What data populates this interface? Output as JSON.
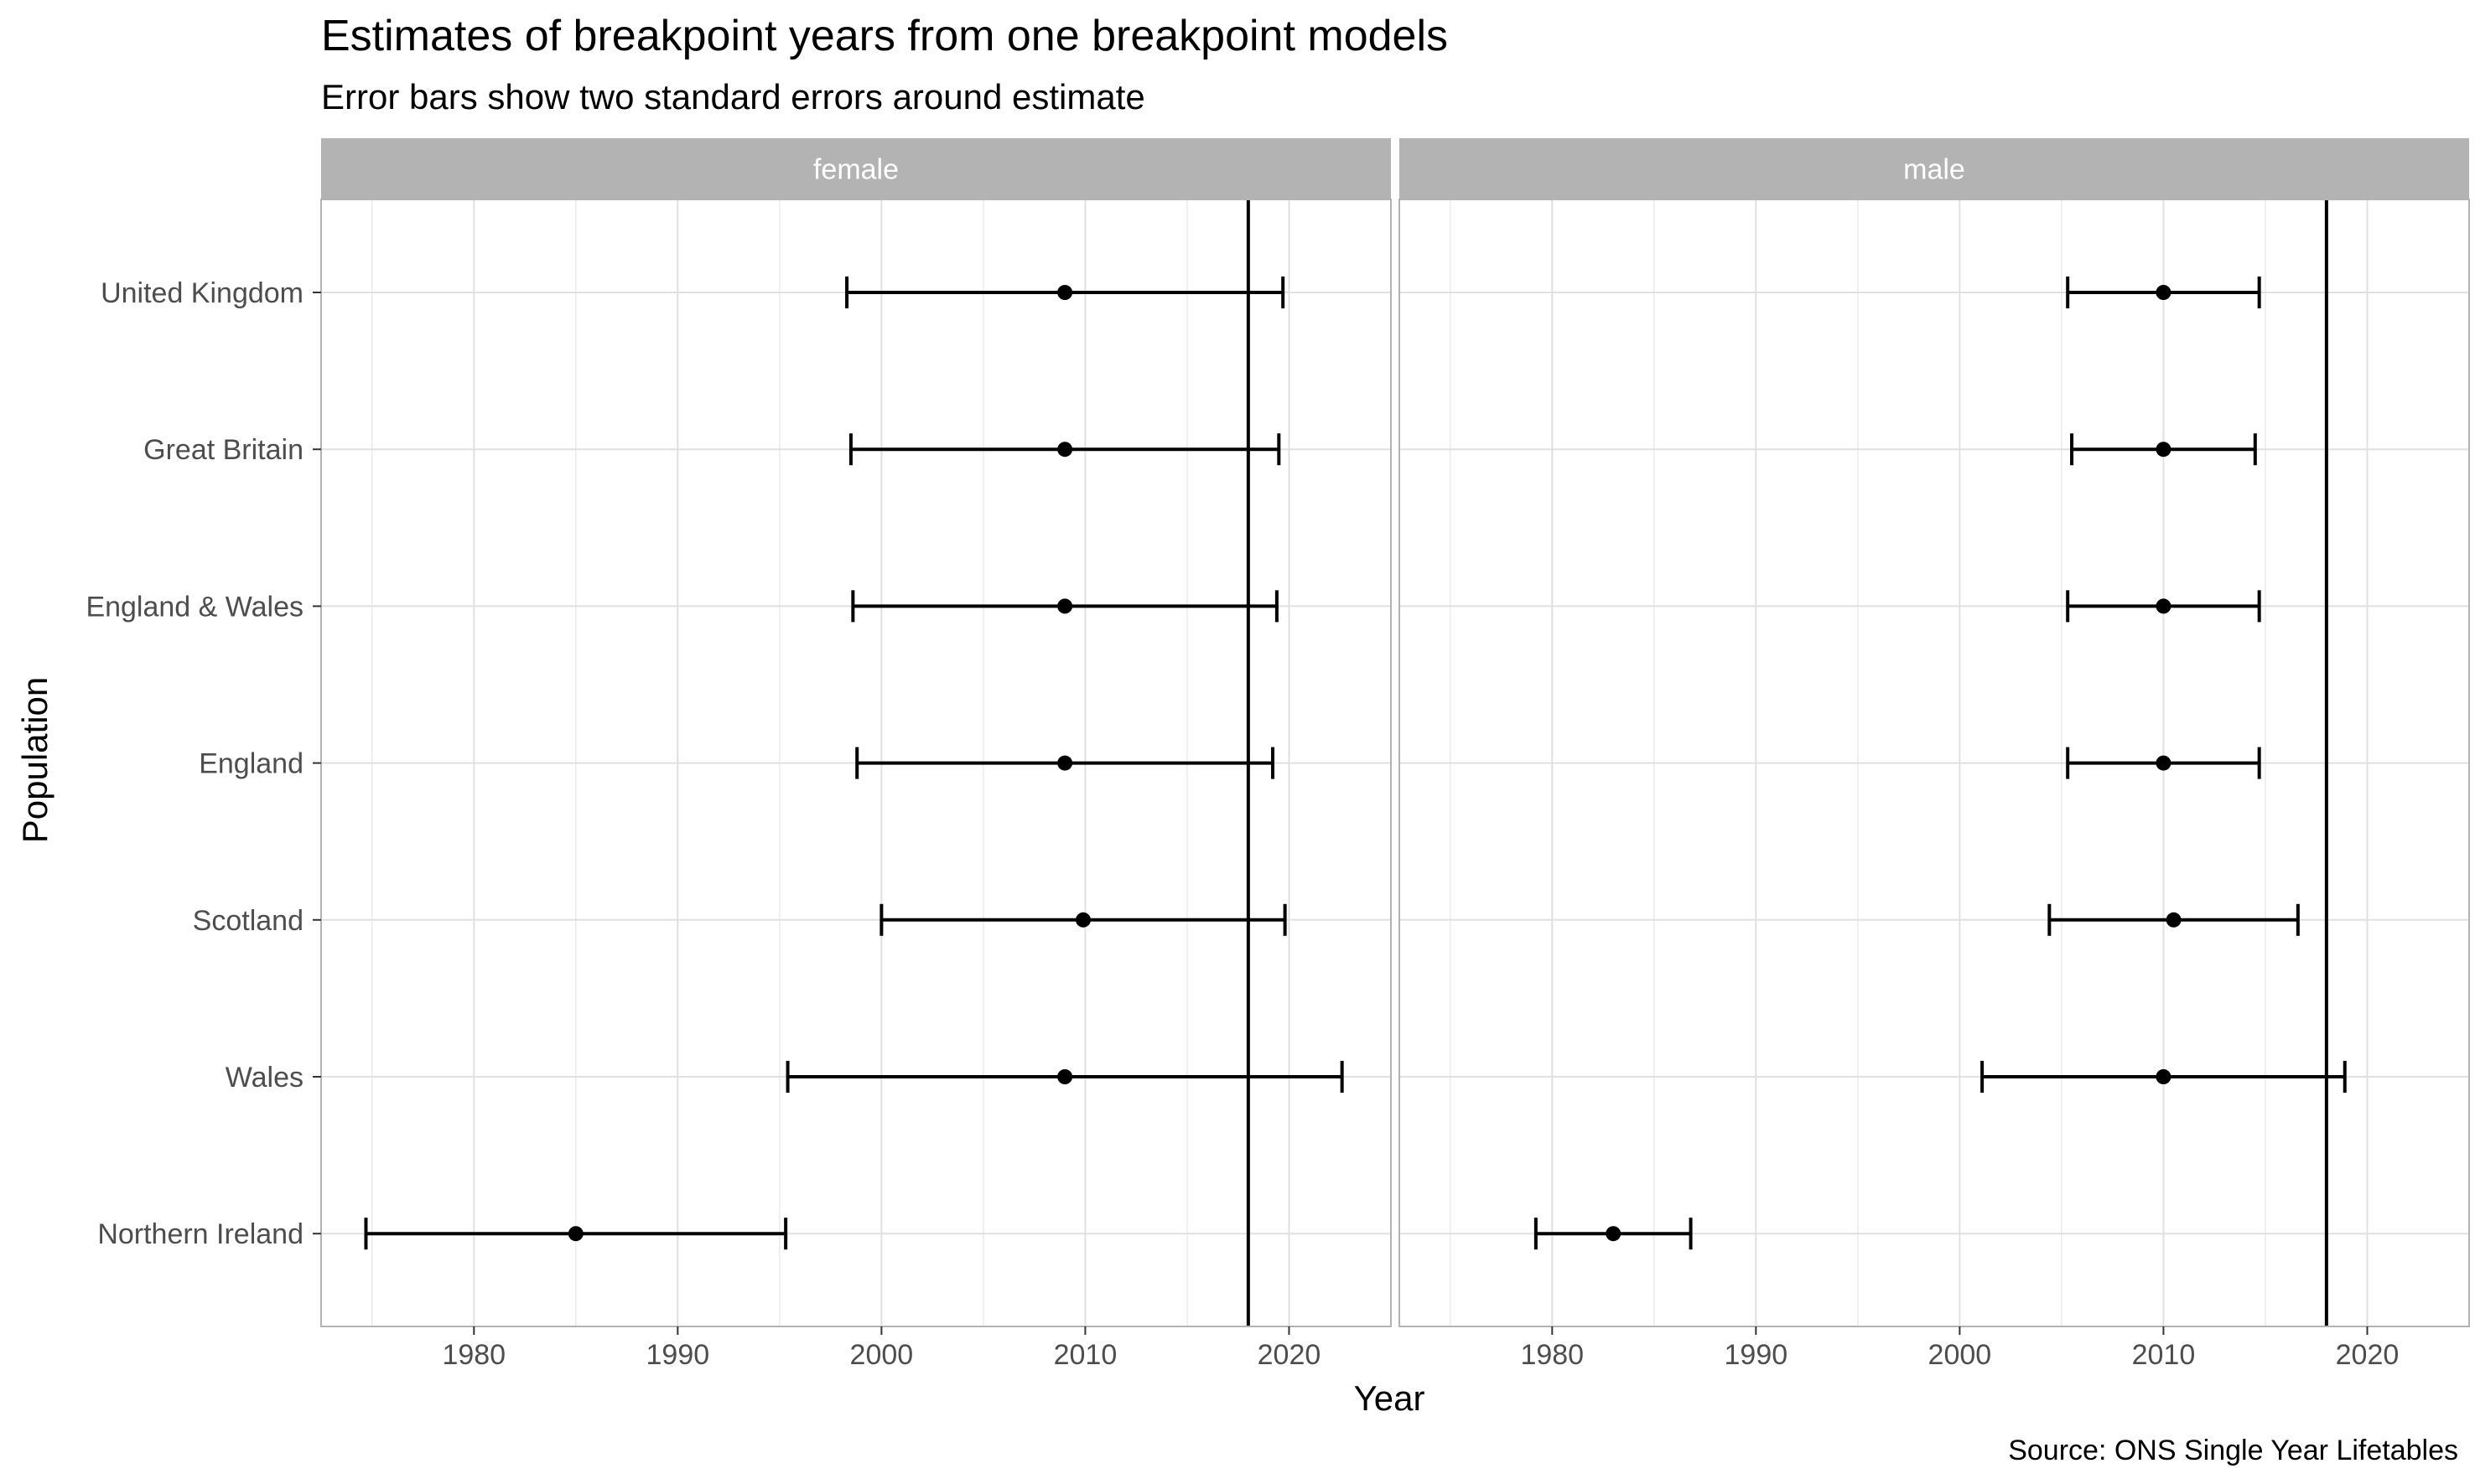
{
  "chart_data": {
    "type": "scatter",
    "title": "Estimates of breakpoint years from one breakpoint models",
    "subtitle": "Error bars show two standard errors around estimate",
    "caption": "Source: ONS Single Year Lifetables",
    "xlabel": "Year",
    "ylabel": "Population",
    "xlim": [
      1972.5,
      2025
    ],
    "x_ticks": [
      1980,
      1990,
      2000,
      2010,
      2020
    ],
    "reference_line_x": 2018,
    "categories": [
      "United Kingdom",
      "Great Britain",
      "England & Wales",
      "England",
      "Scotland",
      "Wales",
      "Northern Ireland"
    ],
    "grid": true,
    "panels": [
      {
        "name": "female",
        "points": [
          {
            "population": "United Kingdom",
            "estimate": 2009.0,
            "lower": 1998.3,
            "upper": 2019.7
          },
          {
            "population": "Great Britain",
            "estimate": 2009.0,
            "lower": 1998.5,
            "upper": 2019.5
          },
          {
            "population": "England & Wales",
            "estimate": 2009.0,
            "lower": 1998.6,
            "upper": 2019.4
          },
          {
            "population": "England",
            "estimate": 2009.0,
            "lower": 1998.8,
            "upper": 2019.2
          },
          {
            "population": "Scotland",
            "estimate": 2009.9,
            "lower": 2000.0,
            "upper": 2019.8
          },
          {
            "population": "Wales",
            "estimate": 2009.0,
            "lower": 1995.4,
            "upper": 2022.6
          },
          {
            "population": "Northern Ireland",
            "estimate": 1985.0,
            "lower": 1974.7,
            "upper": 1995.3
          }
        ]
      },
      {
        "name": "male",
        "points": [
          {
            "population": "United Kingdom",
            "estimate": 2010.0,
            "lower": 2005.3,
            "upper": 2014.7
          },
          {
            "population": "Great Britain",
            "estimate": 2010.0,
            "lower": 2005.5,
            "upper": 2014.5
          },
          {
            "population": "England & Wales",
            "estimate": 2010.0,
            "lower": 2005.3,
            "upper": 2014.7
          },
          {
            "population": "England",
            "estimate": 2010.0,
            "lower": 2005.3,
            "upper": 2014.7
          },
          {
            "population": "Scotland",
            "estimate": 2010.5,
            "lower": 2004.4,
            "upper": 2016.6
          },
          {
            "population": "Wales",
            "estimate": 2010.0,
            "lower": 2001.1,
            "upper": 2018.9
          },
          {
            "population": "Northern Ireland",
            "estimate": 1983.0,
            "lower": 1979.2,
            "upper": 1986.8
          }
        ]
      }
    ]
  }
}
